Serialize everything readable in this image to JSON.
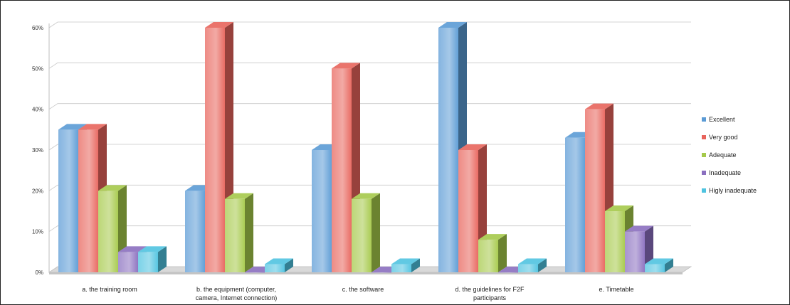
{
  "chart_data": {
    "type": "bar",
    "style": "3d-clustered-column",
    "categories": [
      [
        "a. the training room"
      ],
      [
        "b. the equipment (computer,",
        "camera, Internet connection)"
      ],
      [
        "c. the software"
      ],
      [
        "d. the guidelines for F2F",
        "participants"
      ],
      [
        "e. Timetable"
      ]
    ],
    "series": [
      {
        "name": "Excellent",
        "color": "#5b9bd5",
        "values": [
          35,
          20,
          30,
          60,
          33
        ]
      },
      {
        "name": "Very good",
        "color": "#e8645c",
        "values": [
          35,
          60,
          50,
          30,
          40
        ]
      },
      {
        "name": "Adequate",
        "color": "#a5c94a",
        "values": [
          20,
          18,
          18,
          8,
          15
        ]
      },
      {
        "name": "Inadequate",
        "color": "#8a6fbf",
        "values": [
          5,
          0,
          0,
          0,
          10
        ]
      },
      {
        "name": "Higly inadequate",
        "color": "#4fc3e0",
        "values": [
          5,
          2,
          2,
          2,
          2
        ]
      }
    ],
    "yticks": [
      "0%",
      "10%",
      "20%",
      "30%",
      "40%",
      "50%",
      "60%"
    ],
    "ylim": [
      0,
      60
    ],
    "grid": true,
    "legend": "right"
  }
}
